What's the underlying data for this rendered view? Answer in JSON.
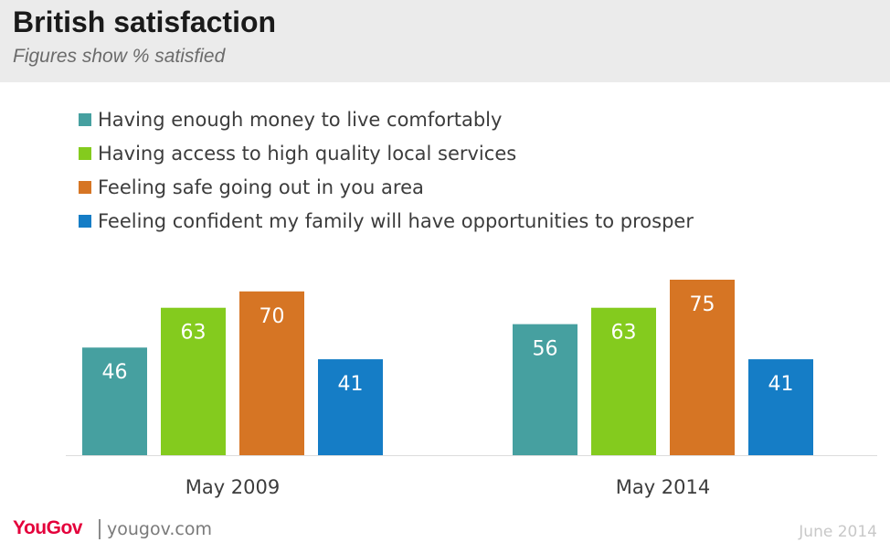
{
  "header": {
    "title": "British satisfaction",
    "subtitle": "Figures show % satisfied"
  },
  "chart_data": {
    "type": "bar",
    "categories": [
      "May 2009",
      "May 2014"
    ],
    "series": [
      {
        "name": "Having enough money to live comfortably",
        "color": "#46a0a0",
        "values": [
          46,
          56
        ]
      },
      {
        "name": "Having access to high quality local services",
        "color": "#84cb1e",
        "values": [
          63,
          63
        ]
      },
      {
        "name": "Feeling safe going out in you area",
        "color": "#d67524",
        "values": [
          70,
          75
        ]
      },
      {
        "name": "Feeling confident my family will have opportunities to prosper",
        "color": "#157dc6",
        "values": [
          41,
          41
        ]
      }
    ],
    "ylim": [
      0,
      75
    ],
    "grid": false,
    "legend_position": "top-left",
    "data_labels": true
  },
  "footer": {
    "brand": "YouGov",
    "url": "yougov.com",
    "date": "June 2014"
  }
}
